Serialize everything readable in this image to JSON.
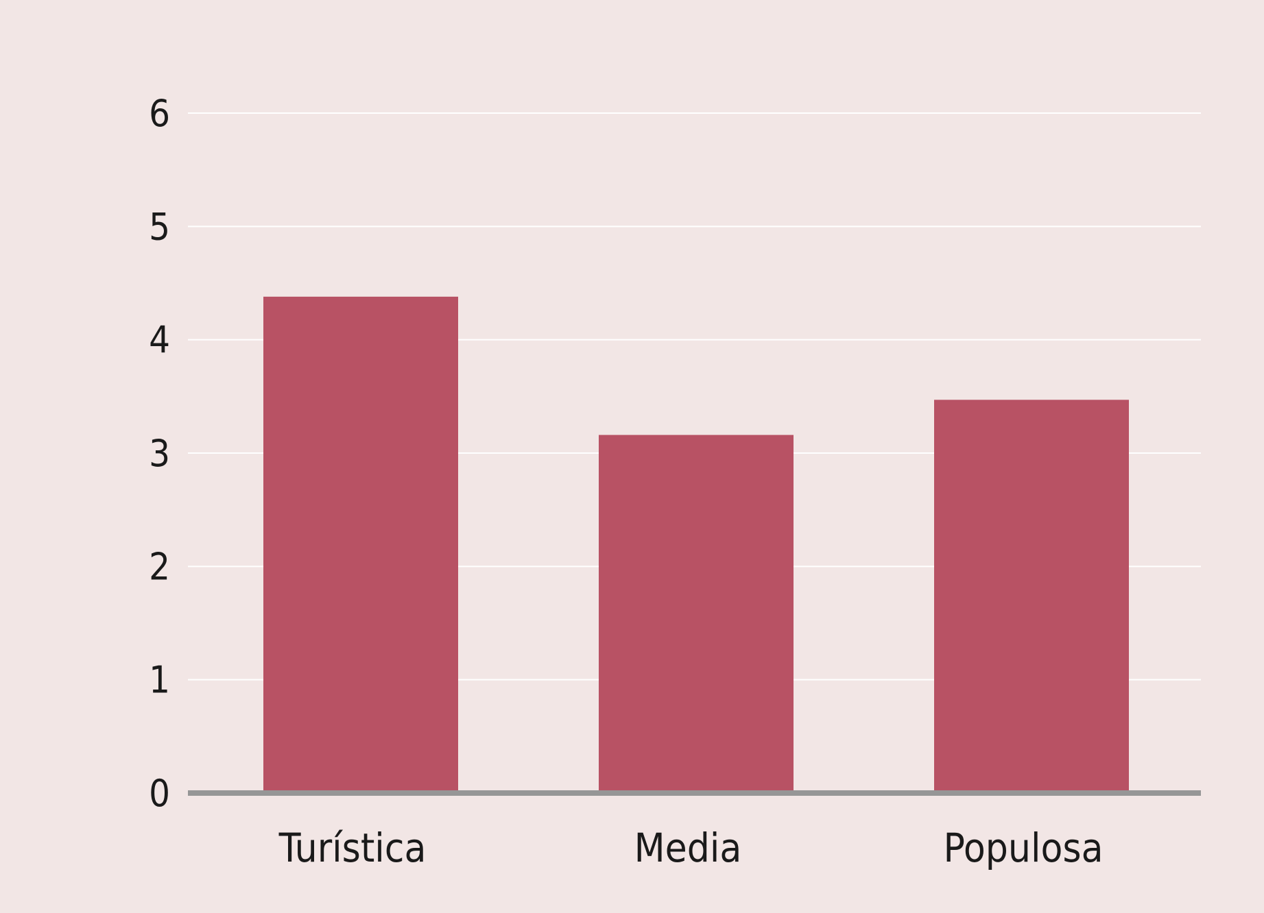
{
  "colors": {
    "background": "#f2e6e5",
    "bar": "#b85264",
    "grid": "#ffffff",
    "baseline": "#969696"
  },
  "chart_data": {
    "type": "bar",
    "categories": [
      "Turística",
      "Media",
      "Populosa"
    ],
    "values": [
      4.38,
      3.16,
      3.47
    ],
    "title": "",
    "xlabel": "",
    "ylabel": "",
    "ylim": [
      0,
      6
    ],
    "yticks": [
      "0",
      "1",
      "2",
      "3",
      "4",
      "5",
      "6"
    ],
    "grid": true,
    "legend": "none"
  }
}
